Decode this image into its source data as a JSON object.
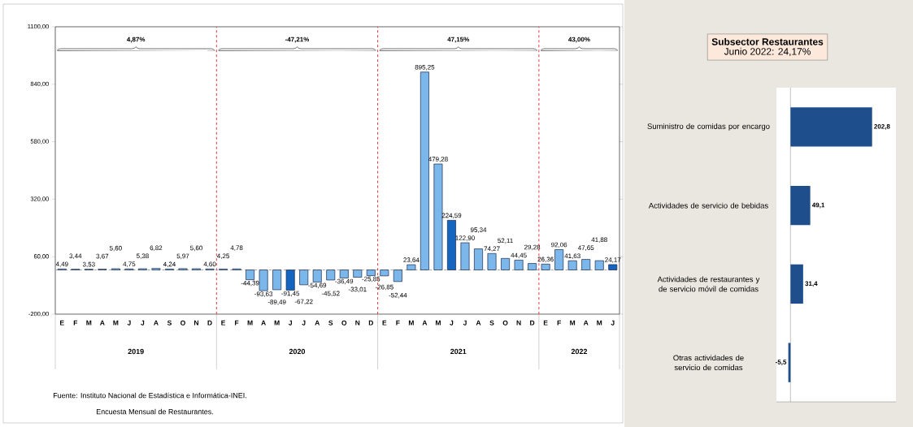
{
  "chart_data": [
    {
      "type": "bar",
      "categories": [
        "E",
        "F",
        "M",
        "A",
        "M",
        "J",
        "J",
        "A",
        "S",
        "O",
        "N",
        "D",
        "E",
        "F",
        "M",
        "A",
        "M",
        "J",
        "J",
        "A",
        "S",
        "O",
        "N",
        "D",
        "E",
        "F",
        "M",
        "A",
        "M",
        "J",
        "J",
        "A",
        "S",
        "O",
        "N",
        "D",
        "E",
        "F",
        "M",
        "A",
        "M",
        "J"
      ],
      "values": [
        4.49,
        3.44,
        3.53,
        3.67,
        5.6,
        4.75,
        5.38,
        6.82,
        4.24,
        5.97,
        5.6,
        4.6,
        4.25,
        4.78,
        -44.39,
        -93.63,
        -89.49,
        -91.45,
        -67.22,
        -54.69,
        -45.52,
        -36.49,
        -33.01,
        -25.85,
        -26.85,
        -52.44,
        23.64,
        895.25,
        479.28,
        224.59,
        122.9,
        95.34,
        74.27,
        52.11,
        44.45,
        29.28,
        26.36,
        92.06,
        41.63,
        47.65,
        41.88,
        24.17
      ],
      "value_labels": [
        "4,49",
        "3,44",
        "3,53",
        "3,67",
        "5,60",
        "4,75",
        "5,38",
        "6,82",
        "4,24",
        "5,97",
        "5,60",
        "4,60",
        "4,25",
        "4,78",
        "-44,39",
        "-93,63",
        "-89,49",
        "-91,45",
        "-67,22",
        "-54,69",
        "-45,52",
        "-36,49",
        "-33,01",
        "-25,85",
        "-26,85",
        "-52,44",
        "23,64",
        "895,25",
        "479,28",
        "224,59",
        "122,90",
        "95,34",
        "74,27",
        "52,11",
        "44,45",
        "29,28",
        "26,36",
        "92,06",
        "41,63",
        "47,65",
        "41,88",
        "24,17"
      ],
      "colors": [
        "#7cb7ec",
        "#7cb7ec",
        "#7cb7ec",
        "#7cb7ec",
        "#7cb7ec",
        "#7cb7ec",
        "#7cb7ec",
        "#7cb7ec",
        "#7cb7ec",
        "#7cb7ec",
        "#7cb7ec",
        "#7cb7ec",
        "#7cb7ec",
        "#7cb7ec",
        "#7cb7ec",
        "#7cb7ec",
        "#7cb7ec",
        "#1565c0",
        "#7cb7ec",
        "#7cb7ec",
        "#7cb7ec",
        "#7cb7ec",
        "#7cb7ec",
        "#7cb7ec",
        "#7cb7ec",
        "#7cb7ec",
        "#7cb7ec",
        "#7cb7ec",
        "#7cb7ec",
        "#1565c0",
        "#7cb7ec",
        "#7cb7ec",
        "#7cb7ec",
        "#7cb7ec",
        "#7cb7ec",
        "#7cb7ec",
        "#7cb7ec",
        "#7cb7ec",
        "#7cb7ec",
        "#7cb7ec",
        "#7cb7ec",
        "#1565c0"
      ],
      "ylim": [
        -200,
        1100
      ],
      "yticks": [
        {
          "value": -200,
          "label": "-200,00"
        },
        {
          "value": 60,
          "label": "60,00"
        },
        {
          "value": 320,
          "label": "320,00"
        },
        {
          "value": 580,
          "label": "580,00"
        },
        {
          "value": 840,
          "label": "840,00"
        },
        {
          "value": 1100,
          "label": "1100,00"
        }
      ],
      "ref_lines": [
        {
          "axis": "y",
          "value": 0,
          "color": "#a6a6a6",
          "line_style": "dashed"
        }
      ],
      "annotations": [
        "4,87%",
        "-47,21%",
        "47,15%",
        "43,00%",
        "2019",
        "2020",
        "2021",
        "2022",
        "Fuente: Instituto Nacional de Estadística e Informática-INEI.",
        "Encuesta Mensual de  Restaurantes."
      ]
    },
    {
      "type": "bar",
      "orientation": "horizontal",
      "title": "Subsector Restaurantes",
      "subtitle": "Junio 2022: 24,17%",
      "categories": [
        "Suministro de comidas por encargo",
        "Actividades de servicio de bebidas",
        "Actividades de restaurantes y de servicio móvil de comidas",
        "Otras actividades de servicio de comidas"
      ],
      "values": [
        202.8,
        49.1,
        31.4,
        -5.5
      ],
      "value_labels": [
        "202,8",
        "49,1",
        "31,4",
        "-5,5"
      ],
      "color": "#1f4e8c",
      "xlim": [
        -35,
        262
      ]
    }
  ]
}
